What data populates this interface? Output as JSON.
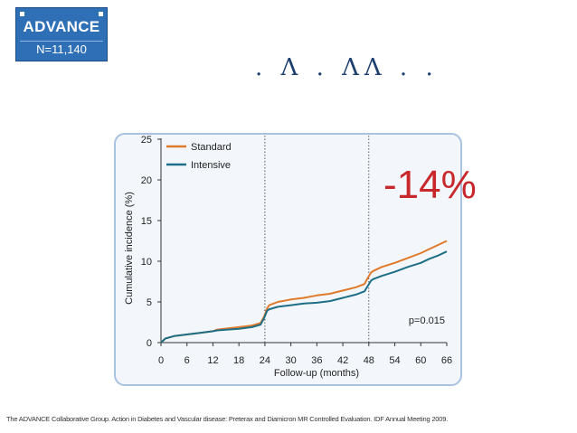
{
  "badge": {
    "title": "ADVANCE",
    "subtitle": "N=11,140"
  },
  "garbled_title": ". Λ . ΛΛ . .",
  "effect": "-14%",
  "pvalue": "p=0.015",
  "footnote": "The ADVANCE Collaborative Group. Action in Diabetes and Vascular disease: Preterax and Diamicron MR Controlled Evaluation. IDF Annual Meeting 2009.",
  "chart_data": {
    "type": "line",
    "xlabel": "Follow-up (months)",
    "ylabel": "Cumulative incidence (%)",
    "xlim": [
      0,
      66
    ],
    "ylim": [
      0,
      25
    ],
    "xticks": [
      0,
      6,
      12,
      18,
      24,
      30,
      36,
      42,
      48,
      54,
      60,
      66
    ],
    "yticks": [
      0,
      5,
      10,
      15,
      20,
      25
    ],
    "vlines": [
      24,
      48
    ],
    "legend_position": "top-left",
    "grid": false,
    "colors": {
      "Standard": "#e07a2b",
      "Intensive": "#1e6f86"
    },
    "series": [
      {
        "name": "Standard",
        "x": [
          0,
          1,
          3,
          6,
          9,
          12,
          13,
          18,
          21,
          23,
          23.8,
          24.5,
          25,
          27,
          30,
          33,
          36,
          39,
          42,
          45,
          47,
          47.8,
          48.5,
          49,
          51,
          54,
          57,
          60,
          62,
          64,
          66
        ],
        "y": [
          0,
          0.5,
          0.8,
          1.0,
          1.2,
          1.4,
          1.6,
          1.9,
          2.1,
          2.4,
          3.2,
          4.2,
          4.6,
          5.0,
          5.3,
          5.5,
          5.8,
          6.0,
          6.4,
          6.8,
          7.2,
          8.0,
          8.6,
          8.8,
          9.3,
          9.8,
          10.4,
          11.0,
          11.5,
          12.0,
          12.5
        ]
      },
      {
        "name": "Intensive",
        "x": [
          0,
          1,
          3,
          6,
          9,
          12,
          13,
          18,
          21,
          23,
          23.8,
          24.5,
          25,
          27,
          30,
          33,
          36,
          39,
          42,
          45,
          47,
          47.8,
          48.5,
          49,
          51,
          54,
          57,
          60,
          62,
          64,
          66
        ],
        "y": [
          0,
          0.5,
          0.8,
          1.0,
          1.2,
          1.4,
          1.5,
          1.7,
          1.9,
          2.2,
          3.0,
          3.9,
          4.1,
          4.4,
          4.6,
          4.8,
          4.9,
          5.1,
          5.5,
          5.9,
          6.3,
          7.0,
          7.6,
          7.8,
          8.2,
          8.7,
          9.3,
          9.8,
          10.3,
          10.7,
          11.2
        ]
      }
    ]
  }
}
